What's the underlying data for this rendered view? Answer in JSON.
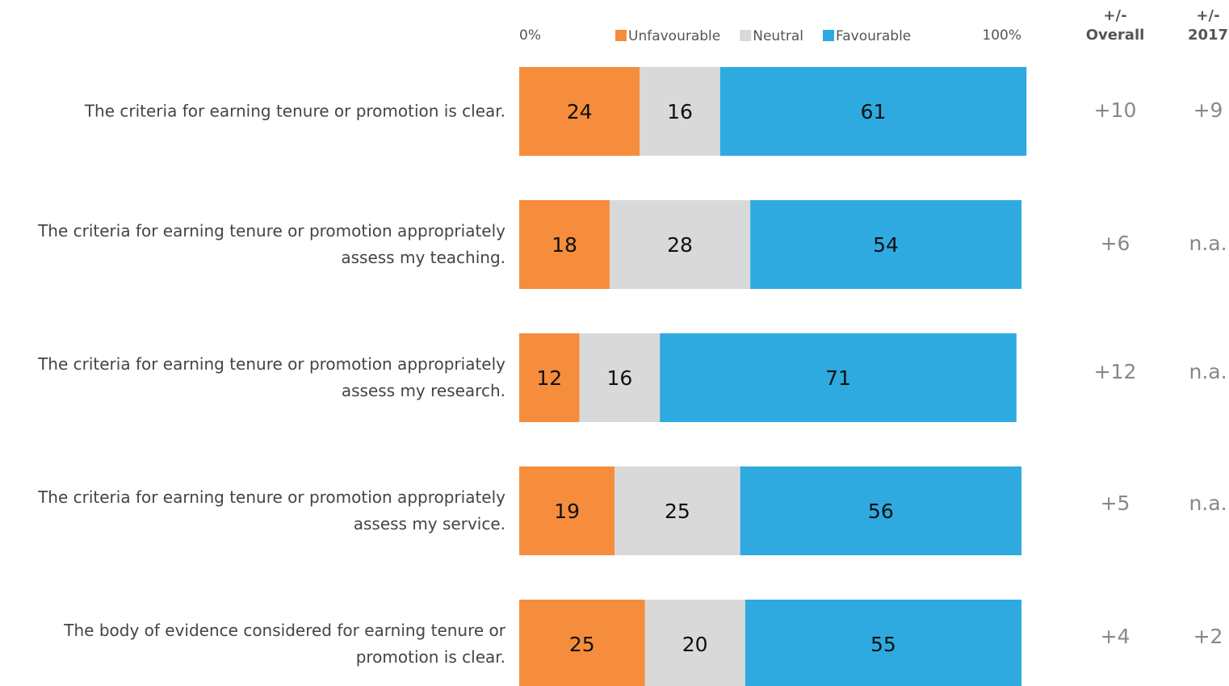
{
  "chart_data": {
    "type": "stacked_barh",
    "categories": [
      "The criteria for earning tenure or promotion is clear.",
      "The criteria for earning tenure or promotion appropriately assess my teaching.",
      "The criteria for earning tenure or promotion appropriately assess my research.",
      "The criteria for earning tenure or promotion appropriately assess my service.",
      "The body of evidence considered for earning tenure or promotion is clear."
    ],
    "series": [
      {
        "name": "Unfavourable",
        "color": "#f58d3d",
        "values": [
          24,
          18,
          12,
          19,
          25
        ]
      },
      {
        "name": "Neutral",
        "color": "#d9d9d9",
        "values": [
          16,
          28,
          16,
          25,
          20
        ]
      },
      {
        "name": "Favourable",
        "color": "#2eaae1",
        "values": [
          61,
          54,
          71,
          56,
          55
        ]
      }
    ],
    "xlim": [
      0,
      100
    ],
    "xticks": [
      {
        "value": 0,
        "label": "0%"
      },
      {
        "value": 100,
        "label": "100%"
      }
    ],
    "side_columns": [
      {
        "header": [
          "+/-",
          "Overall"
        ],
        "values": [
          "+10",
          "+6",
          "+12",
          "+5",
          "+4"
        ]
      },
      {
        "header": [
          "+/-",
          "2017"
        ],
        "values": [
          "+9",
          "n.a.",
          "n.a.",
          "n.a.",
          "+2"
        ]
      }
    ]
  }
}
